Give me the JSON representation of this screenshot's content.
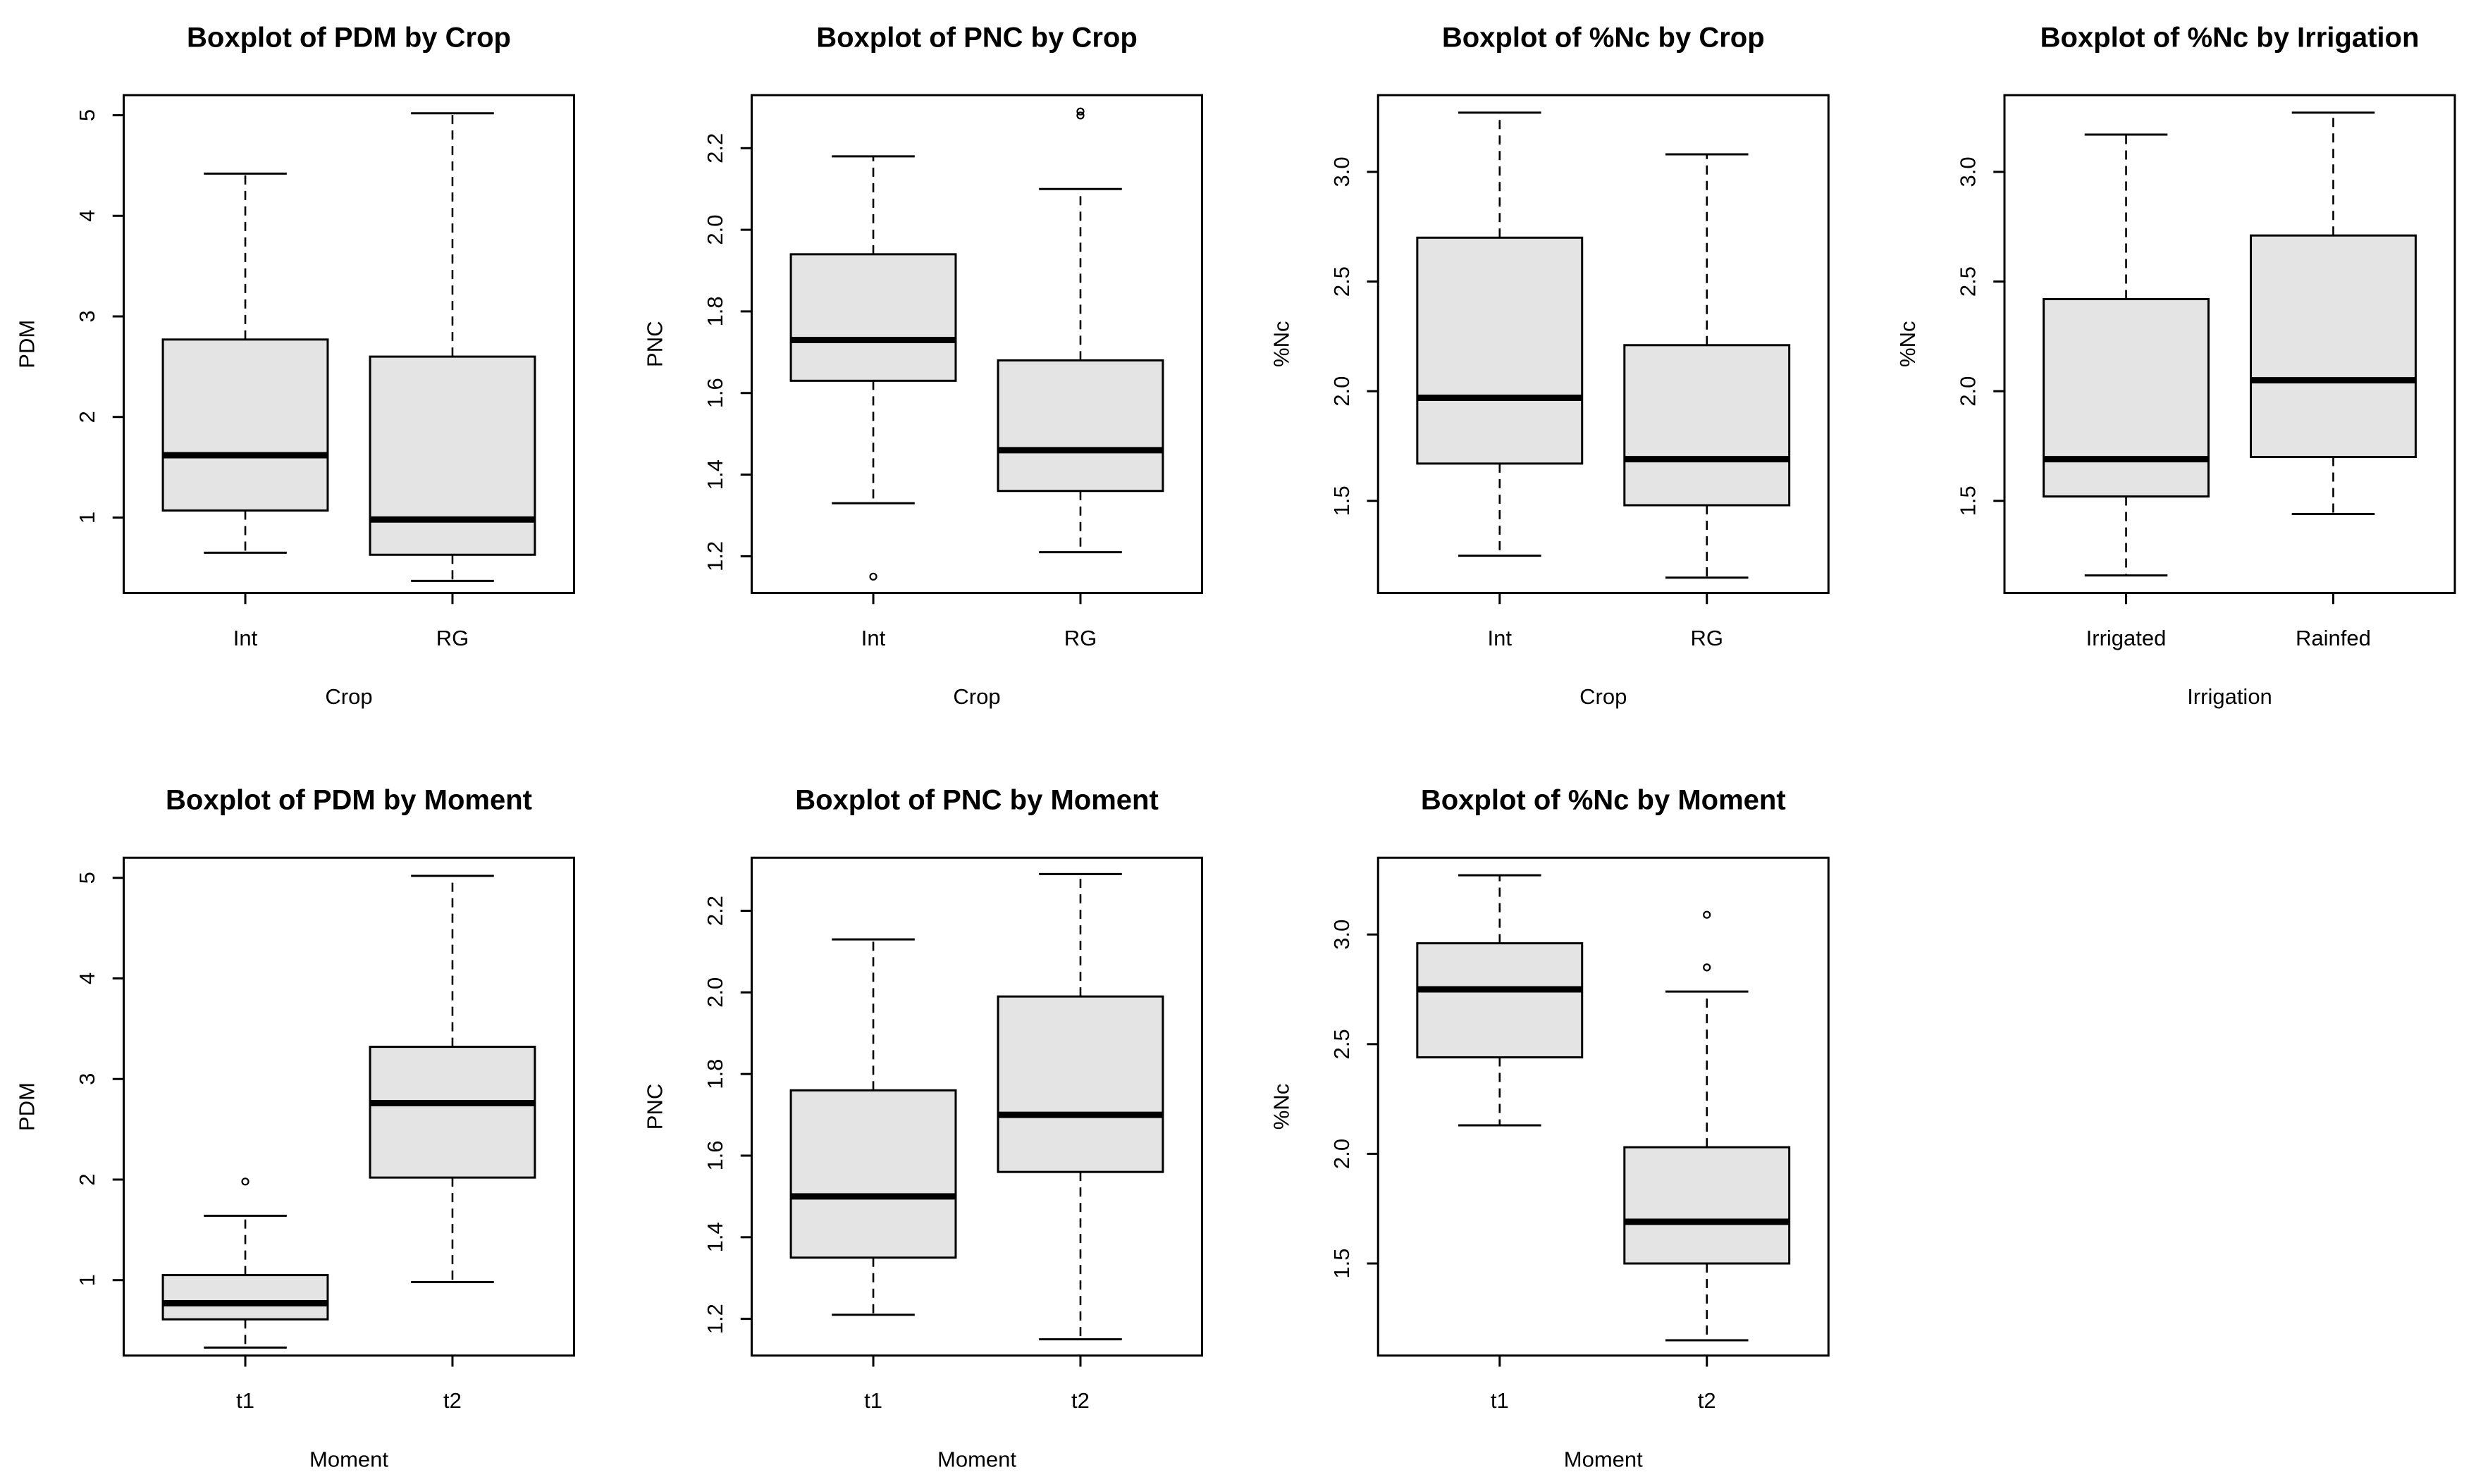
{
  "chart_data": [
    {
      "type": "boxplot",
      "title": "Boxplot of PDM by Crop",
      "xlabel": "Crop",
      "ylabel": "PDM",
      "ylim": [
        0.25,
        5.2
      ],
      "yticks": [
        "1",
        "2",
        "3",
        "4",
        "5"
      ],
      "categories": [
        "Int",
        "RG"
      ],
      "boxes": [
        {
          "label": "Int",
          "whisker_low": 0.65,
          "q1": 1.07,
          "median": 1.62,
          "q3": 2.77,
          "whisker_high": 4.42,
          "outliers": []
        },
        {
          "label": "RG",
          "whisker_low": 0.37,
          "q1": 0.63,
          "median": 0.98,
          "q3": 2.6,
          "whisker_high": 5.02,
          "outliers": []
        }
      ]
    },
    {
      "type": "boxplot",
      "title": "Boxplot of PNC by Crop",
      "xlabel": "Crop",
      "ylabel": "PNC",
      "ylim": [
        1.11,
        2.33
      ],
      "yticks": [
        "1.2",
        "1.4",
        "1.6",
        "1.8",
        "2.0",
        "2.2"
      ],
      "categories": [
        "Int",
        "RG"
      ],
      "boxes": [
        {
          "label": "Int",
          "whisker_low": 1.33,
          "q1": 1.63,
          "median": 1.73,
          "q3": 1.94,
          "whisker_high": 2.18,
          "outliers": [
            1.15
          ]
        },
        {
          "label": "RG",
          "whisker_low": 1.21,
          "q1": 1.36,
          "median": 1.46,
          "q3": 1.68,
          "whisker_high": 2.1,
          "outliers": [
            2.28,
            2.29
          ]
        }
      ]
    },
    {
      "type": "boxplot",
      "title": "Boxplot of %Nc by Crop",
      "xlabel": "Crop",
      "ylabel": "%Nc",
      "ylim": [
        1.08,
        3.35
      ],
      "yticks": [
        "1.5",
        "2.0",
        "2.5",
        "3.0"
      ],
      "categories": [
        "Int",
        "RG"
      ],
      "boxes": [
        {
          "label": "Int",
          "whisker_low": 1.25,
          "q1": 1.67,
          "median": 1.97,
          "q3": 2.7,
          "whisker_high": 3.27,
          "outliers": []
        },
        {
          "label": "RG",
          "whisker_low": 1.15,
          "q1": 1.48,
          "median": 1.69,
          "q3": 2.21,
          "whisker_high": 3.08,
          "outliers": []
        }
      ]
    },
    {
      "type": "boxplot",
      "title": "Boxplot of %Nc by Irrigation",
      "xlabel": "Irrigation",
      "ylabel": "%Nc",
      "ylim": [
        1.08,
        3.35
      ],
      "yticks": [
        "1.5",
        "2.0",
        "2.5",
        "3.0"
      ],
      "categories": [
        "Irrigated",
        "Rainfed"
      ],
      "boxes": [
        {
          "label": "Irrigated",
          "whisker_low": 1.16,
          "q1": 1.52,
          "median": 1.69,
          "q3": 2.42,
          "whisker_high": 3.17,
          "outliers": []
        },
        {
          "label": "Rainfed",
          "whisker_low": 1.44,
          "q1": 1.7,
          "median": 2.05,
          "q3": 2.71,
          "whisker_high": 3.27,
          "outliers": []
        }
      ]
    },
    {
      "type": "boxplot",
      "title": "Boxplot of PDM by Moment",
      "xlabel": "Moment",
      "ylabel": "PDM",
      "ylim": [
        0.25,
        5.2
      ],
      "yticks": [
        "1",
        "2",
        "3",
        "4",
        "5"
      ],
      "categories": [
        "t1",
        "t2"
      ],
      "boxes": [
        {
          "label": "t1",
          "whisker_low": 0.33,
          "q1": 0.61,
          "median": 0.77,
          "q3": 1.05,
          "whisker_high": 1.64,
          "outliers": [
            1.98
          ]
        },
        {
          "label": "t2",
          "whisker_low": 0.98,
          "q1": 2.02,
          "median": 2.76,
          "q3": 3.32,
          "whisker_high": 5.02,
          "outliers": []
        }
      ]
    },
    {
      "type": "boxplot",
      "title": "Boxplot of PNC by Moment",
      "xlabel": "Moment",
      "ylabel": "PNC",
      "ylim": [
        1.11,
        2.33
      ],
      "yticks": [
        "1.2",
        "1.4",
        "1.6",
        "1.8",
        "2.0",
        "2.2"
      ],
      "categories": [
        "t1",
        "t2"
      ],
      "boxes": [
        {
          "label": "t1",
          "whisker_low": 1.21,
          "q1": 1.35,
          "median": 1.5,
          "q3": 1.76,
          "whisker_high": 2.13,
          "outliers": []
        },
        {
          "label": "t2",
          "whisker_low": 1.15,
          "q1": 1.56,
          "median": 1.7,
          "q3": 1.99,
          "whisker_high": 2.29,
          "outliers": []
        }
      ]
    },
    {
      "type": "boxplot",
      "title": "Boxplot of %Nc by Moment",
      "xlabel": "Moment",
      "ylabel": "%Nc",
      "ylim": [
        1.08,
        3.35
      ],
      "yticks": [
        "1.5",
        "2.0",
        "2.5",
        "3.0"
      ],
      "categories": [
        "t1",
        "t2"
      ],
      "boxes": [
        {
          "label": "t1",
          "whisker_low": 2.13,
          "q1": 2.44,
          "median": 2.75,
          "q3": 2.96,
          "whisker_high": 3.27,
          "outliers": []
        },
        {
          "label": "t2",
          "whisker_low": 1.15,
          "q1": 1.5,
          "median": 1.69,
          "q3": 2.03,
          "whisker_high": 2.74,
          "outliers": [
            2.85,
            3.09
          ]
        }
      ]
    }
  ]
}
